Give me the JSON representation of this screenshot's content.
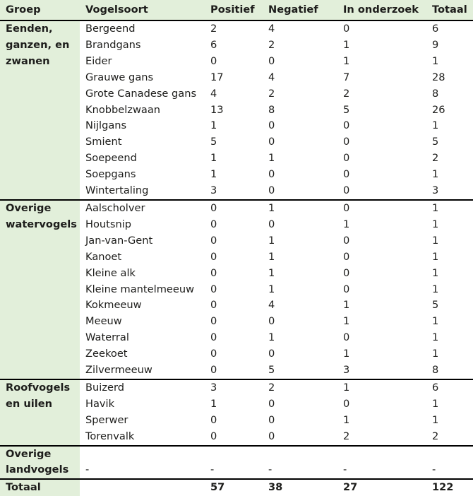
{
  "colors": {
    "header_bg": "#e2efda",
    "group_col_bg": "#e2efda",
    "border": "#000000",
    "text": "#1d1d1b",
    "row_bg": "#ffffff"
  },
  "chart_data": {
    "type": "table",
    "columns": [
      "Groep",
      "Vogelsoort",
      "Positief",
      "Negatief",
      "In onderzoek",
      "Totaal"
    ],
    "groups": [
      {
        "name": "Eenden, ganzen, en zwanen",
        "rows": [
          [
            "Bergeend",
            "2",
            "4",
            "0",
            "6"
          ],
          [
            "Brandgans",
            "6",
            "2",
            "1",
            "9"
          ],
          [
            "Eider",
            "0",
            "0",
            "1",
            "1"
          ],
          [
            "Grauwe gans",
            "17",
            "4",
            "7",
            "28"
          ],
          [
            "Grote Canadese gans",
            "4",
            "2",
            "2",
            "8"
          ],
          [
            "Knobbelzwaan",
            "13",
            "8",
            "5",
            "26"
          ],
          [
            "Nijlgans",
            "1",
            "0",
            "0",
            "1"
          ],
          [
            "Smient",
            "5",
            "0",
            "0",
            "5"
          ],
          [
            "Soepeend",
            "1",
            "1",
            "0",
            "2"
          ],
          [
            "Soepgans",
            "1",
            "0",
            "0",
            "1"
          ],
          [
            "Wintertaling",
            "3",
            "0",
            "0",
            "3"
          ]
        ]
      },
      {
        "name": "Overige watervogels",
        "rows": [
          [
            "Aalscholver",
            "0",
            "1",
            "0",
            "1"
          ],
          [
            "Houtsnip",
            "0",
            "0",
            "1",
            "1"
          ],
          [
            "Jan-van-Gent",
            "0",
            "1",
            "0",
            "1"
          ],
          [
            "Kanoet",
            "0",
            "1",
            "0",
            "1"
          ],
          [
            "Kleine alk",
            "0",
            "1",
            "0",
            "1"
          ],
          [
            "Kleine mantelmeeuw",
            "0",
            "1",
            "0",
            "1"
          ],
          [
            "Kokmeeuw",
            "0",
            "4",
            "1",
            "5"
          ],
          [
            "Meeuw",
            "0",
            "0",
            "1",
            "1"
          ],
          [
            "Waterral",
            "0",
            "1",
            "0",
            "1"
          ],
          [
            "Zeekoet",
            "0",
            "0",
            "1",
            "1"
          ],
          [
            "Zilvermeeuw",
            "0",
            "5",
            "3",
            "8"
          ]
        ]
      },
      {
        "name": "Roofvogels en uilen",
        "rows": [
          [
            "Buizerd",
            "3",
            "2",
            "1",
            "6"
          ],
          [
            "Havik",
            "1",
            "0",
            "0",
            "1"
          ],
          [
            "Sperwer",
            "0",
            "0",
            "1",
            "1"
          ],
          [
            "Torenvalk",
            "0",
            "0",
            "2",
            "2"
          ]
        ]
      },
      {
        "name": "Overige landvogels",
        "rows": [
          [
            "",
            "",
            "",
            "",
            ""
          ],
          [
            "-",
            "-",
            "-",
            "-",
            "-"
          ]
        ]
      }
    ],
    "total_row": {
      "label": "Totaal",
      "vogelsoort": "",
      "values": [
        "57",
        "38",
        "27",
        "122"
      ]
    }
  }
}
